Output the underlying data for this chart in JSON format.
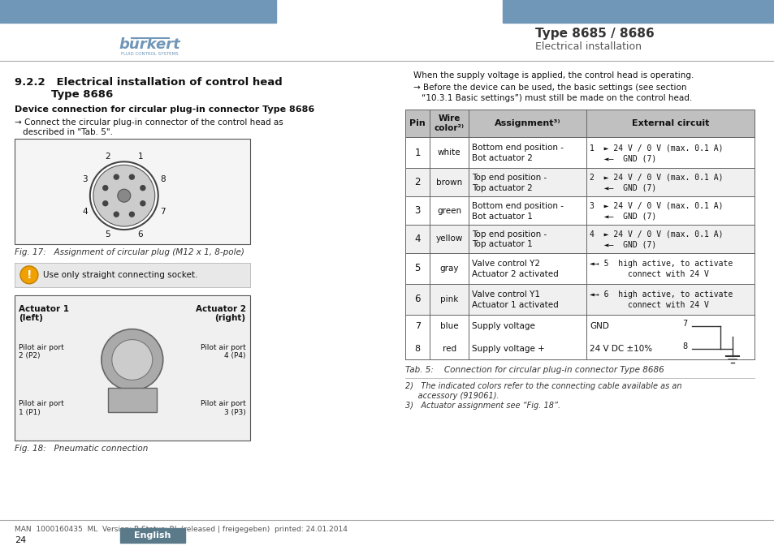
{
  "bg_color": "#ffffff",
  "header_blue": "#7096b8",
  "header_bar_color": "#7096b8",
  "title_right": "Type 8685 / 8686",
  "subtitle_right": "Electrical installation",
  "section_title": "9.2.2   Electrical installation of control head\n            Type 8686",
  "device_connection_title": "Device connection for circular plug-in connector Type 8686",
  "arrow_text": "→ Connect the circular plug-in connector of the control head as\n    described in \"Tab. 5\".",
  "fig17_caption": "Fig. 17:   Assignment of circular plug (M12 x 1, 8-pole)",
  "warning_text": "Use only straight connecting socket.",
  "fig18_caption": "Fig. 18:   Pneumatic connection",
  "right_intro1": "When the supply voltage is applied, the control head is operating.",
  "right_intro2": "→ Before the device can be used, the basic settings (see section\n   “10.3.1 Basic settings”) must still be made on the control head.",
  "table_header": [
    "Pin",
    "Wire\ncolor²⁾",
    "Assignment³⁾",
    "External circuit"
  ],
  "table_rows": [
    [
      "1",
      "white",
      "Bottom end position -\nBot actuator 2",
      "1  ► 24 V / 0 V (max. 0.1 A)\n   ◄—  GND (7)"
    ],
    [
      "2",
      "brown",
      "Top end position -\nTop actuator 2",
      "2  ► 24 V / 0 V (max. 0.1 A)\n   ◄—  GND (7)"
    ],
    [
      "3",
      "green",
      "Bottom end position -\nBot actuator 1",
      "3  ► 24 V / 0 V (max. 0.1 A)\n   ◄—  GND (7)"
    ],
    [
      "4",
      "yellow",
      "Top end position -\nTop actuator 1",
      "4  ► 24 V / 0 V (max. 0.1 A)\n   ◄—  GND (7)"
    ],
    [
      "5",
      "gray",
      "Valve control Y2\nActuator 2 activated",
      "◄→ 5  high active, to activate\n        connect with 24 V"
    ],
    [
      "6",
      "pink",
      "Valve control Y1\nActuator 1 activated",
      "◄→ 6  high active, to activate\n        connect with 24 V"
    ],
    [
      "7",
      "blue",
      "Supply voltage",
      "GND"
    ],
    [
      "8",
      "red",
      "Supply voltage +",
      "24 V DC ±10%"
    ]
  ],
  "tab5_caption": "Tab. 5:    Connection for circular plug-in connector Type 8686",
  "footnote2": "2)   The indicated colors refer to the connecting cable available as an\n     accessory (919061).",
  "footnote3": "3)   Actuator assignment see “Fig. 18”.",
  "footer_text": "MAN  1000160435  ML  Version: B Status: RL (released | freigegeben)  printed: 24.01.2014",
  "page_number": "24",
  "page_lang": "English",
  "lang_bg": "#5a7a8a",
  "actuator1_label": "Actuator 1\n(left)",
  "actuator2_label": "Actuator 2\n(right)",
  "pilot_labels": [
    "Pilot air port\n2 (P2)",
    "Pilot air port\n4 (P4)",
    "Pilot air port\n1 (P1)",
    "Pilot air port\n3 (P3)"
  ]
}
